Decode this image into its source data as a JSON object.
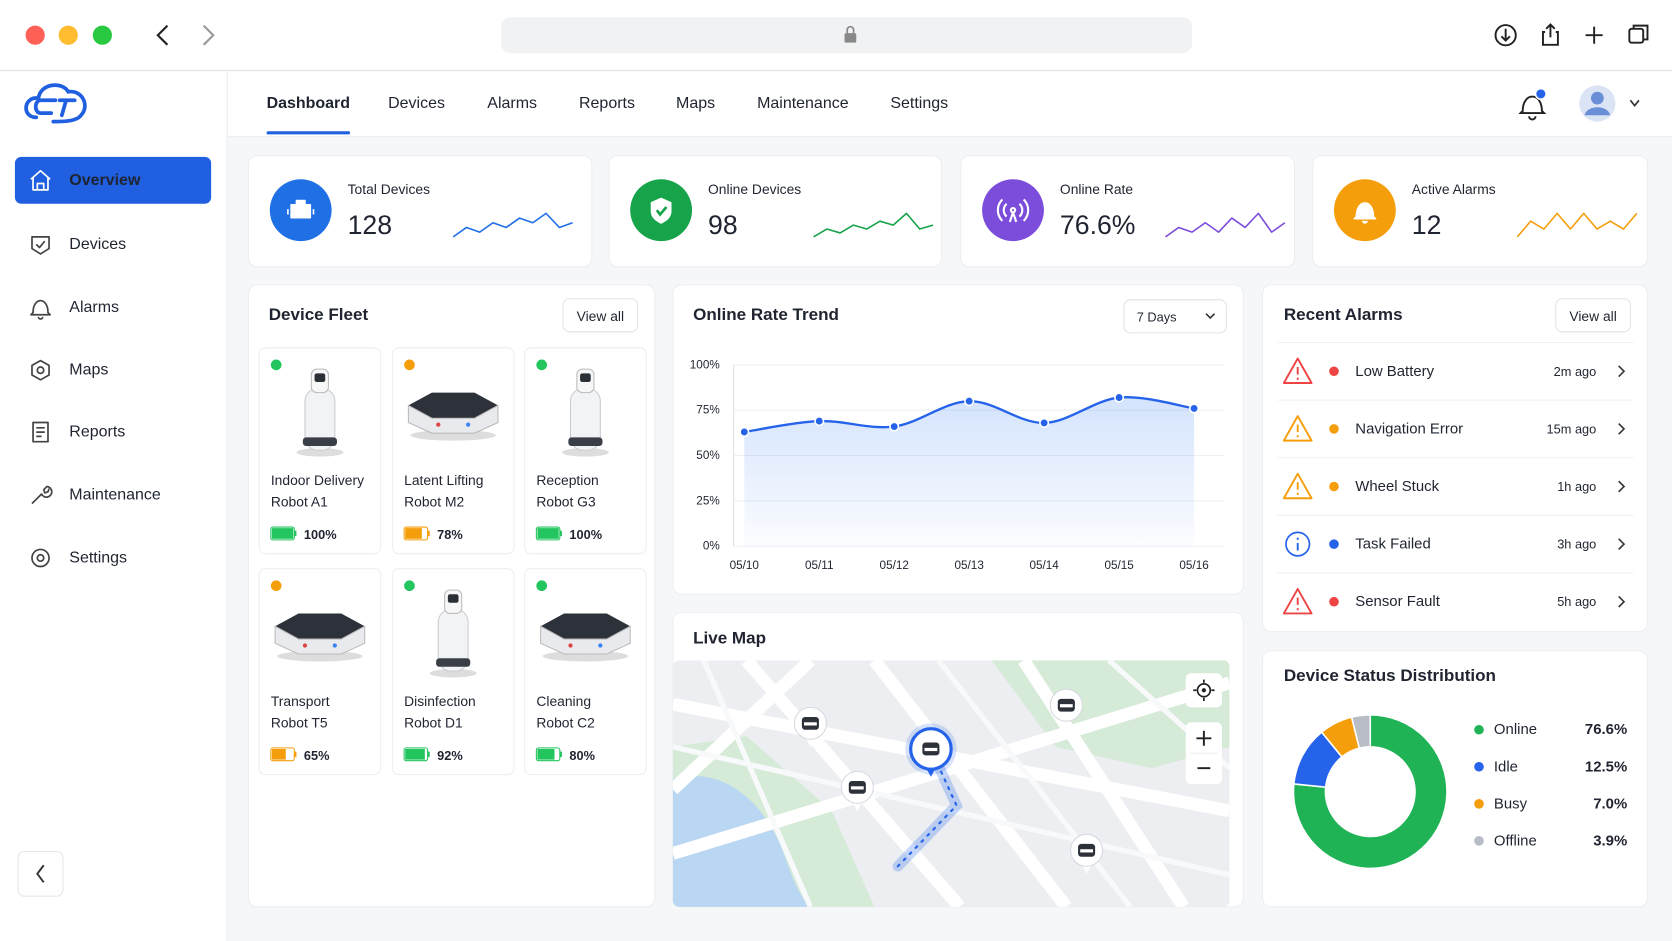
{
  "sidebar": {
    "items": [
      "Overview",
      "Devices",
      "Alarms",
      "Maps",
      "Reports",
      "Maintenance",
      "Settings"
    ],
    "active": 0
  },
  "nav": {
    "tabs": [
      "Dashboard",
      "Devices",
      "Alarms",
      "Reports",
      "Maps",
      "Maintenance",
      "Settings"
    ],
    "active": 0
  },
  "stats": [
    {
      "label": "Total Devices",
      "value": 128,
      "color": "#1f6fe5",
      "trend": [
        3,
        5,
        4,
        6,
        5,
        7,
        6,
        8,
        5,
        6
      ]
    },
    {
      "label": "Online Devices",
      "value": 98,
      "color": "#16a34a",
      "trend": [
        2,
        4,
        3,
        5,
        4,
        6,
        5,
        8,
        4,
        5
      ]
    },
    {
      "label": "Online Rate",
      "value": "76.6%",
      "color": "#7c4ddb",
      "trend": [
        3,
        5,
        4,
        6,
        4,
        7,
        5,
        8,
        4,
        6
      ]
    },
    {
      "label": "Active Alarms",
      "value": 12,
      "color": "#f59e0b",
      "trend": [
        4,
        6,
        5,
        7,
        5,
        7,
        5,
        6,
        5,
        7
      ]
    }
  ],
  "device_fleet": {
    "title": "Device Fleet",
    "action": "View all",
    "devices": [
      {
        "name": [
          "Indoor Delivery",
          "Robot A1"
        ],
        "status_color": "#22c55e",
        "battery": 100,
        "battery_label": "100%",
        "battery_color": "#22c55e"
      },
      {
        "name": [
          "Latent Lifting",
          "Robot M2"
        ],
        "status_color": "#f59e0b",
        "battery": 78,
        "battery_label": "78%",
        "battery_color": "#f59e0b"
      },
      {
        "name": [
          "Reception",
          "Robot G3"
        ],
        "status_color": "#22c55e",
        "battery": 100,
        "battery_label": "100%",
        "battery_color": "#22c55e"
      },
      {
        "name": [
          "Transport",
          "Robot T5"
        ],
        "status_color": "#f59e0b",
        "battery": 65,
        "battery_label": "65%",
        "battery_color": "#f59e0b"
      },
      {
        "name": [
          "Disinfection",
          "Robot D1"
        ],
        "status_color": "#22c55e",
        "battery": 92,
        "battery_label": "92%",
        "battery_color": "#22c55e"
      },
      {
        "name": [
          "Cleaning",
          "Robot C2"
        ],
        "status_color": "#22c55e",
        "battery": 80,
        "battery_label": "80%",
        "battery_color": "#22c55e"
      }
    ]
  },
  "chart_data": [
    {
      "type": "line",
      "title": "Online Rate Trend",
      "range": "7 Days",
      "categories": [
        "05/10",
        "05/11",
        "05/12",
        "05/13",
        "05/14",
        "05/15",
        "05/16"
      ],
      "values": [
        63,
        69,
        66,
        80,
        68,
        82,
        76
      ],
      "color": "#2563eb",
      "ylim": [
        0,
        100
      ],
      "yticks": [
        {
          "value": 0,
          "label": "0%"
        },
        {
          "value": 25,
          "label": "25%"
        },
        {
          "value": 50,
          "label": "50%"
        },
        {
          "value": 75,
          "label": "75%"
        },
        {
          "value": 100,
          "label": "100%"
        }
      ],
      "grid": true
    },
    {
      "type": "pie",
      "title": "Device Status Distribution",
      "donut": true,
      "categories": [
        "Online",
        "Idle",
        "Busy",
        "Offline"
      ],
      "values": [
        76.6,
        12.5,
        7.0,
        3.9
      ],
      "value_labels": [
        "76.6%",
        "12.5%",
        "7.0%",
        "3.9%"
      ],
      "colors": [
        "#1fb356",
        "#2563eb",
        "#f59e0b",
        "#b8bcc4"
      ]
    }
  ],
  "recent_alarms": {
    "title": "Recent Alarms",
    "action": "View all",
    "items": [
      {
        "name": "Low Battery",
        "time": "2m ago",
        "color": "#ef4444"
      },
      {
        "name": "Navigation Error",
        "time": "15m ago",
        "color": "#f59e0b"
      },
      {
        "name": "Wheel Stuck",
        "time": "1h ago",
        "color": "#f59e0b"
      },
      {
        "name": "Task Failed",
        "time": "3h ago",
        "color": "#2563eb"
      },
      {
        "name": "Sensor Fault",
        "time": "5h ago",
        "color": "#ef4444"
      }
    ]
  },
  "live_map": {
    "title": "Live Map"
  }
}
